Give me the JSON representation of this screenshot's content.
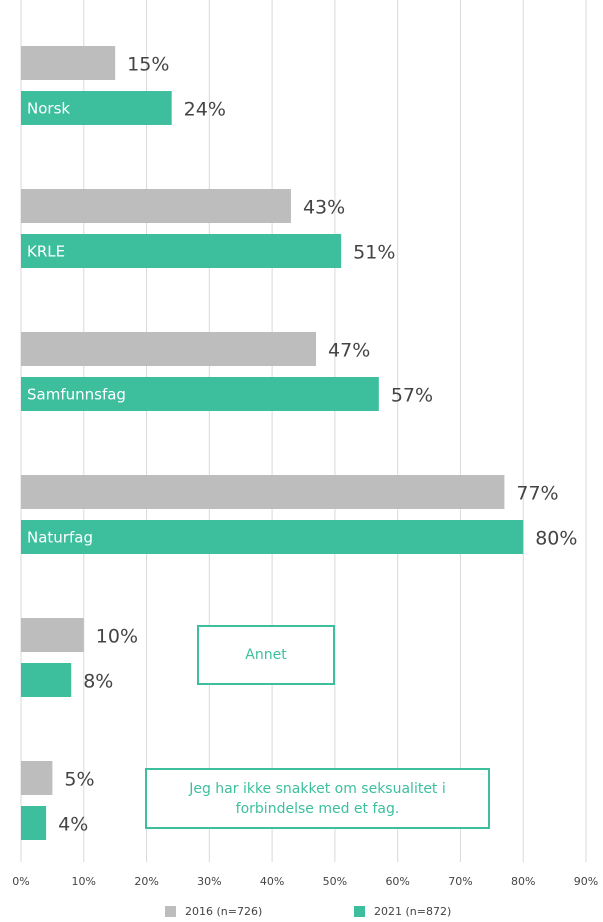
{
  "chart_data": {
    "type": "bar",
    "orientation": "horizontal",
    "categories": [
      "Norsk",
      "KRLE",
      "Samfunnsfag",
      "Naturfag",
      "Annet",
      "Jeg har ikke snakket om seksualitet i forbindelse med et fag."
    ],
    "series": [
      {
        "name": "2016 (n=726)",
        "color": "#bdbdbd",
        "values": [
          15,
          43,
          47,
          77,
          10,
          5
        ],
        "value_labels": [
          "15%",
          "43%",
          "47%",
          "77%",
          "10%",
          "5%"
        ]
      },
      {
        "name": "2021 (n=872)",
        "color": "#3dbf9e",
        "values": [
          24,
          51,
          57,
          80,
          8,
          4
        ],
        "value_labels": [
          "24%",
          "51%",
          "57%",
          "80%",
          "8%",
          "4%"
        ]
      }
    ],
    "xlim": [
      0,
      90
    ],
    "xticks": [
      {
        "value": 0,
        "label": "0%"
      },
      {
        "value": 10,
        "label": "10%"
      },
      {
        "value": 20,
        "label": "20%"
      },
      {
        "value": 30,
        "label": "30%"
      },
      {
        "value": 40,
        "label": "40%"
      },
      {
        "value": 50,
        "label": "50%"
      },
      {
        "value": 60,
        "label": "60%"
      },
      {
        "value": 70,
        "label": "70%"
      },
      {
        "value": 80,
        "label": "80%"
      },
      {
        "value": 90,
        "label": "90%"
      }
    ],
    "grid": true,
    "legend": "bottom"
  }
}
